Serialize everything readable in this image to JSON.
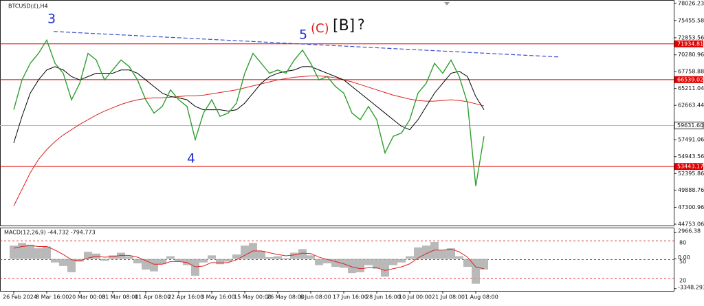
{
  "chart_data": [
    {
      "type": "line",
      "title": "BTCUSD(£),H4",
      "categories": [
        "26 Feb 2024",
        null,
        null,
        null,
        "8 Mar 16:00",
        null,
        null,
        null,
        "20 Mar 00:00",
        null,
        null,
        null,
        "31 Mar 08:00",
        null,
        null,
        null,
        "11 Apr 08:00",
        null,
        null,
        null,
        "22 Apr 16:00",
        null,
        null,
        null,
        "3 May 16:00",
        null,
        null,
        null,
        "15 May 00:00",
        null,
        null,
        null,
        "26 May 08:00",
        null,
        null,
        null,
        "6 Jun 08:00",
        null,
        null,
        null,
        "17 Jun 16:00",
        null,
        null,
        null,
        "28 Jun 16:00",
        null,
        null,
        null,
        "10 Jul 00:00",
        null,
        null,
        null,
        "21 Jul 08:00",
        null,
        null,
        null,
        "1 Aug 08:00",
        null
      ],
      "series": [
        {
          "color": "#2e9e2e",
          "values": [
            62000,
            66500,
            69000,
            70500,
            72500,
            69000,
            67500,
            63500,
            66000,
            70500,
            69500,
            66500,
            68000,
            69500,
            68500,
            66500,
            63500,
            61500,
            62500,
            65000,
            63500,
            62500,
            57500,
            61500,
            63500,
            61000,
            61500,
            63000,
            67500,
            70500,
            69000,
            67500,
            68000,
            67500,
            69500,
            71000,
            69000,
            66500,
            67000,
            65500,
            64500,
            61500,
            60500,
            62500,
            60500,
            55500,
            58000,
            58500,
            60500,
            64500,
            66000,
            69000,
            67500,
            69500,
            67000,
            63000,
            50500,
            58000
          ]
        },
        {
          "color": "#000000",
          "values": [
            57000,
            61000,
            64500,
            66500,
            68000,
            68500,
            68000,
            67000,
            66500,
            67000,
            67500,
            67500,
            67500,
            68000,
            68000,
            67500,
            66500,
            65500,
            64500,
            64000,
            63800,
            63500,
            62500,
            62000,
            62000,
            62000,
            61800,
            62000,
            63000,
            64500,
            66000,
            67000,
            67500,
            67800,
            68000,
            68500,
            68500,
            68000,
            67500,
            67000,
            66500,
            65500,
            64500,
            63500,
            62500,
            61500,
            60500,
            59500,
            59000,
            60500,
            62500,
            64500,
            66000,
            67500,
            67800,
            67000,
            64000,
            62000
          ]
        },
        {
          "color": "#e02020",
          "values": [
            47500,
            50000,
            52500,
            54500,
            56000,
            57200,
            58200,
            59000,
            59800,
            60500,
            61200,
            61800,
            62300,
            62800,
            63200,
            63500,
            63700,
            63800,
            63800,
            63900,
            64000,
            64100,
            64100,
            64200,
            64400,
            64600,
            64800,
            65000,
            65300,
            65600,
            65900,
            66200,
            66500,
            66700,
            66900,
            67000,
            67100,
            67100,
            67000,
            66800,
            66500,
            66200,
            65800,
            65400,
            65000,
            64600,
            64200,
            63900,
            63600,
            63400,
            63300,
            63300,
            63400,
            63500,
            63400,
            63200,
            62900,
            62600
          ]
        }
      ],
      "ylim": [
        44546,
        78337
      ],
      "yticks": [
        78026.23,
        75455.58,
        72853.56,
        70280.96,
        67758.88,
        65211.04,
        62663.44,
        57491.06,
        54943.56,
        52395.86,
        49888.76,
        47300.96,
        44753.06
      ],
      "hlines": [
        71934.81,
        66539.02,
        53443.17
      ],
      "hline_color": "#e00000",
      "last_price": {
        "value": 59631.6,
        "label": "59631.60"
      },
      "trendline": [
        73800,
        69950
      ],
      "trendline_color": "#3a4fd0",
      "wave_labels": [
        "3",
        "4",
        "5"
      ],
      "annotation": [
        "(C)",
        "[B]",
        "?"
      ]
    },
    {
      "type": "bar",
      "title": "MACD(12,26,9) -44.732 -794.773",
      "series": [
        {
          "color": "#a8a8a8",
          "values": [
            1500,
            1800,
            1600,
            1200,
            1400,
            -400,
            -800,
            -1500,
            -300,
            800,
            600,
            -200,
            400,
            700,
            300,
            -500,
            -1200,
            -1400,
            -600,
            300,
            -300,
            -700,
            -1900,
            -400,
            400,
            -600,
            -300,
            500,
            1500,
            1800,
            900,
            200,
            300,
            100,
            700,
            1100,
            400,
            -700,
            -500,
            -900,
            -1000,
            -1600,
            -1500,
            -700,
            -1100,
            -2000,
            -700,
            -400,
            300,
            1300,
            1500,
            1900,
            1000,
            1200,
            300,
            -900,
            -2800,
            -1200
          ]
        },
        {
          "color": "#e02020",
          "values": [
            1200,
            1400,
            1500,
            1400,
            1400,
            1000,
            500,
            -100,
            -200,
            100,
            300,
            200,
            250,
            400,
            400,
            200,
            -200,
            -600,
            -600,
            -300,
            -300,
            -400,
            -900,
            -800,
            -400,
            -450,
            -400,
            -100,
            400,
            900,
            900,
            700,
            500,
            350,
            450,
            650,
            600,
            200,
            -50,
            -300,
            -550,
            -900,
            -1100,
            -1000,
            -1000,
            -1300,
            -1100,
            -900,
            -550,
            100,
            600,
            1000,
            1000,
            1100,
            800,
            200,
            -900,
            -1100
          ]
        }
      ],
      "ylim": [
        -3600,
        3450
      ],
      "yticks": [
        2966.38,
        {
          "value": 0,
          "label": "0.00"
        },
        -3348.293
      ],
      "levels": [
        80,
        50,
        20
      ],
      "levels_lim": [
        0,
        100
      ],
      "levels_color": "#e03030"
    }
  ]
}
